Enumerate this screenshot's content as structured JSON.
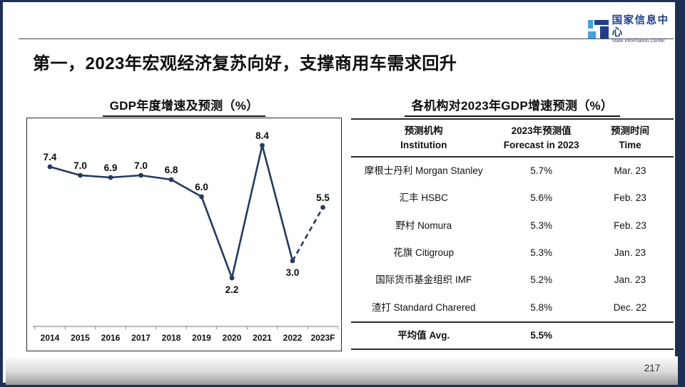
{
  "page": {
    "slide_title": "第一，2023年宏观经济复苏向好，支撑商用车需求回升",
    "page_number": "217"
  },
  "logo": {
    "name_cn": "国家信息中心",
    "name_en": "State Information Center"
  },
  "colors": {
    "frame": "#1d3054",
    "logo_dark": "#1c3f8f",
    "logo_light": "#3fa2e6"
  },
  "chart_data": {
    "type": "line",
    "title": "GDP年度增速及预测（%）",
    "categories": [
      "2014",
      "2015",
      "2016",
      "2017",
      "2018",
      "2019",
      "2020",
      "2021",
      "2022",
      "2023F"
    ],
    "values": [
      7.4,
      7.0,
      6.9,
      7.0,
      6.8,
      6.0,
      2.2,
      8.4,
      3.0,
      5.5
    ],
    "labels": [
      "7.4",
      "7.0",
      "6.9",
      "7.0",
      "6.8",
      "6.0",
      "2.2",
      "8.4",
      "3.0",
      "5.5"
    ],
    "label_position": [
      "above",
      "above",
      "above",
      "above",
      "above",
      "above",
      "below",
      "above",
      "below",
      "above"
    ],
    "dashed_from_index": 8,
    "line_color": "#1f3a68",
    "xlabel": "",
    "ylabel": "",
    "ylim": [
      0,
      9.7
    ],
    "grid": false,
    "legend": "none",
    "note": "dashed segment 2022→2023F indicates forecast"
  },
  "table": {
    "title": "各机构对2023年GDP增速预测（%）",
    "headers": [
      {
        "cn": "预测机构",
        "en": "Institution"
      },
      {
        "cn": "2023年预测值",
        "en": "Forecast in 2023"
      },
      {
        "cn": "预测时间",
        "en": "Time"
      }
    ],
    "rows": [
      [
        "摩根士丹利 Morgan Stanley",
        "5.7%",
        "Mar. 23"
      ],
      [
        "汇丰 HSBC",
        "5.6%",
        "Feb. 23"
      ],
      [
        "野村 Nomura",
        "5.3%",
        "Feb. 23"
      ],
      [
        "花旗 Citigroup",
        "5.3%",
        "Jan. 23"
      ],
      [
        "国际货币基金组织 IMF",
        "5.2%",
        "Jan. 23"
      ],
      [
        "渣打 Standard Charered",
        "5.8%",
        "Dec. 22"
      ]
    ],
    "footer": [
      "平均值 Avg.",
      "5.5%",
      ""
    ]
  }
}
